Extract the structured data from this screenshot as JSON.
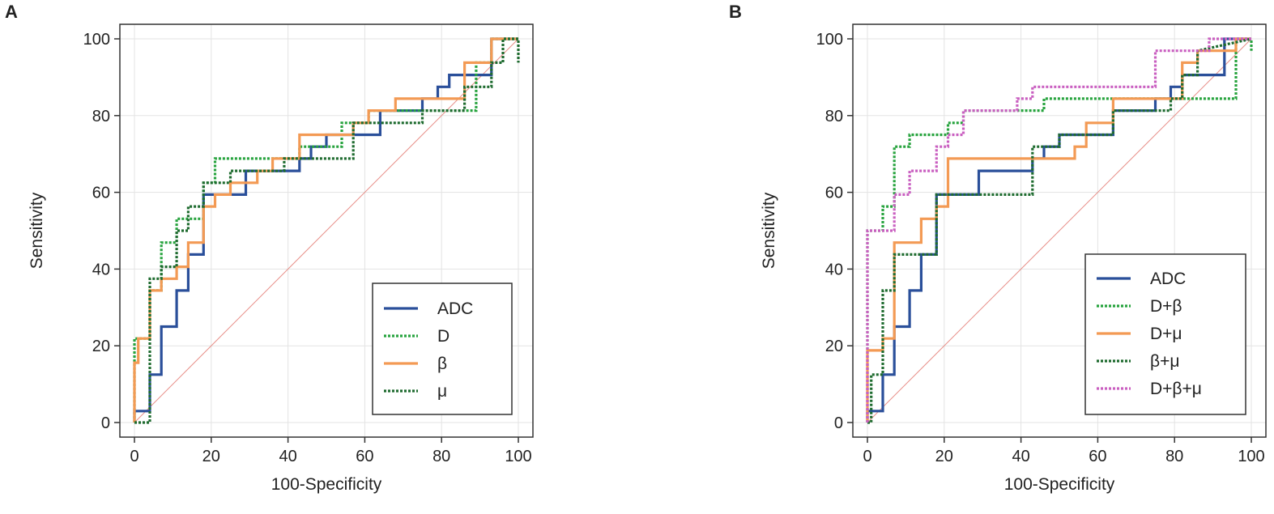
{
  "chart_data": [
    {
      "type": "line",
      "panel": "A",
      "title": "",
      "xlabel": "100-Specificity",
      "ylabel": "Sensitivity",
      "xlim": [
        0,
        100
      ],
      "ylim": [
        0,
        100
      ],
      "xticks": [
        "0",
        "20",
        "40",
        "60",
        "80",
        "100"
      ],
      "yticks": [
        "0",
        "20",
        "40",
        "60",
        "80",
        "100"
      ],
      "grid": true,
      "legend_position": "bottom-right",
      "reference_line": {
        "name": "chance line",
        "color": "#e8908a",
        "x": [
          0,
          100
        ],
        "y": [
          0,
          100
        ]
      },
      "series": [
        {
          "name": "ADC",
          "color": "#2a4f9a",
          "style": "solid",
          "x": [
            0,
            0,
            4,
            4,
            7,
            7,
            11,
            11,
            14,
            14,
            18,
            18,
            29,
            29,
            43,
            43,
            46,
            46,
            50,
            50,
            64,
            64,
            75,
            75,
            79,
            79,
            82,
            82,
            93,
            93,
            100
          ],
          "y": [
            0,
            3,
            3,
            12.5,
            12.5,
            25,
            25,
            34.4,
            34.4,
            43.8,
            43.8,
            59.4,
            59.4,
            65.6,
            65.6,
            68.8,
            68.8,
            71.9,
            71.9,
            75,
            75,
            81.3,
            81.3,
            84.4,
            84.4,
            87.5,
            87.5,
            90.6,
            90.6,
            100,
            100
          ]
        },
        {
          "name": "D",
          "color": "#27a33e",
          "style": "dotted",
          "x": [
            0,
            0,
            4,
            4,
            7,
            7,
            11,
            11,
            18,
            18,
            21,
            21,
            43,
            43,
            54,
            54,
            61,
            61,
            89,
            89,
            93,
            93,
            100,
            100
          ],
          "y": [
            0,
            21.9,
            21.9,
            34.4,
            34.4,
            46.9,
            46.9,
            53.1,
            53.1,
            62.5,
            62.5,
            68.8,
            68.8,
            71.9,
            71.9,
            78.1,
            78.1,
            81.3,
            81.3,
            93.8,
            93.8,
            100,
            100,
            100
          ]
        },
        {
          "name": "β",
          "color": "#f39a54",
          "style": "solid",
          "x": [
            0,
            0,
            1,
            1,
            4,
            4,
            7,
            7,
            11,
            11,
            14,
            14,
            18,
            18,
            21,
            21,
            25,
            25,
            32,
            32,
            36,
            36,
            43,
            43,
            57,
            57,
            61,
            61,
            68,
            68,
            86,
            86,
            93,
            93,
            100
          ],
          "y": [
            0,
            15.6,
            15.6,
            21.9,
            21.9,
            34.4,
            34.4,
            37.5,
            37.5,
            40.6,
            40.6,
            46.9,
            46.9,
            56.3,
            56.3,
            59.4,
            59.4,
            62.5,
            62.5,
            65.6,
            65.6,
            68.8,
            68.8,
            75,
            75,
            78.1,
            78.1,
            81.3,
            81.3,
            84.4,
            84.4,
            93.8,
            93.8,
            100,
            100
          ]
        },
        {
          "name": "μ",
          "color": "#1e6b2f",
          "style": "dotted",
          "x": [
            0,
            4,
            4,
            7,
            7,
            11,
            11,
            14,
            14,
            18,
            18,
            25,
            25,
            39,
            39,
            57,
            57,
            75,
            75,
            86,
            86,
            93,
            93,
            96,
            96,
            100,
            100
          ],
          "y": [
            0,
            0,
            37.5,
            37.5,
            40.6,
            40.6,
            50,
            50,
            56.3,
            56.3,
            62.5,
            62.5,
            65.6,
            65.6,
            68.8,
            68.8,
            78.1,
            78.1,
            81.3,
            81.3,
            87.5,
            87.5,
            93.8,
            93.8,
            100,
            100,
            93.8
          ]
        }
      ]
    },
    {
      "type": "line",
      "panel": "B",
      "title": "",
      "xlabel": "100-Specificity",
      "ylabel": "Sensitivity",
      "xlim": [
        0,
        100
      ],
      "ylim": [
        0,
        100
      ],
      "xticks": [
        "0",
        "20",
        "40",
        "60",
        "80",
        "100"
      ],
      "yticks": [
        "0",
        "20",
        "40",
        "60",
        "80",
        "100"
      ],
      "grid": true,
      "legend_position": "bottom-right",
      "reference_line": {
        "name": "chance line",
        "color": "#e8908a",
        "x": [
          0,
          100
        ],
        "y": [
          0,
          100
        ]
      },
      "series": [
        {
          "name": "ADC",
          "color": "#2a4f9a",
          "style": "solid",
          "x": [
            0,
            0,
            4,
            4,
            7,
            7,
            11,
            11,
            14,
            14,
            18,
            18,
            29,
            29,
            43,
            43,
            46,
            46,
            50,
            50,
            64,
            64,
            75,
            75,
            79,
            79,
            82,
            82,
            93,
            93,
            100
          ],
          "y": [
            0,
            3,
            3,
            12.5,
            12.5,
            25,
            25,
            34.4,
            34.4,
            43.8,
            43.8,
            59.4,
            59.4,
            65.6,
            65.6,
            68.8,
            68.8,
            71.9,
            71.9,
            75,
            75,
            81.3,
            81.3,
            84.4,
            84.4,
            87.5,
            87.5,
            90.6,
            90.6,
            100,
            100
          ]
        },
        {
          "name": "D+β",
          "color": "#27a33e",
          "style": "dotted",
          "x": [
            0,
            0,
            4,
            4,
            7,
            7,
            11,
            11,
            14,
            14,
            21,
            21,
            25,
            25,
            32,
            32,
            46,
            46,
            96,
            96,
            100,
            100
          ],
          "y": [
            0,
            50,
            50,
            56.3,
            56.3,
            71.9,
            71.9,
            75,
            75,
            75,
            75,
            78.1,
            78.1,
            81.3,
            81.3,
            81.3,
            81.3,
            84.4,
            84.4,
            100,
            100,
            96.9
          ]
        },
        {
          "name": "D+μ",
          "color": "#f39a54",
          "style": "solid",
          "x": [
            0,
            0,
            4,
            4,
            7,
            7,
            14,
            14,
            18,
            18,
            21,
            21,
            43,
            43,
            54,
            54,
            57,
            57,
            64,
            64,
            75,
            75,
            82,
            82,
            86,
            86,
            96,
            96,
            100
          ],
          "y": [
            0,
            18.8,
            18.8,
            21.9,
            21.9,
            46.9,
            46.9,
            53.1,
            53.1,
            56.3,
            56.3,
            68.8,
            68.8,
            68.8,
            68.8,
            71.9,
            71.9,
            78.1,
            78.1,
            84.4,
            84.4,
            84.4,
            84.4,
            93.8,
            93.8,
            96.9,
            96.9,
            100,
            100
          ]
        },
        {
          "name": "β+μ",
          "color": "#1e6b2f",
          "style": "dotted",
          "x": [
            0,
            1,
            1,
            4,
            4,
            7,
            7,
            11,
            11,
            18,
            18,
            25,
            25,
            43,
            43,
            50,
            50,
            54,
            54,
            64,
            64,
            79,
            79,
            82,
            82,
            86,
            86,
            100
          ],
          "y": [
            0,
            0,
            12.5,
            12.5,
            34.4,
            34.4,
            43.8,
            43.8,
            43.8,
            43.8,
            59.4,
            59.4,
            59.4,
            59.4,
            71.9,
            71.9,
            75,
            75,
            75,
            75,
            81.3,
            81.3,
            84.4,
            84.4,
            90.6,
            90.6,
            96.9,
            100
          ]
        },
        {
          "name": "D+β+μ",
          "color": "#c95fc0",
          "style": "dotted",
          "x": [
            0,
            0,
            7,
            7,
            11,
            11,
            18,
            18,
            21,
            21,
            25,
            25,
            39,
            39,
            43,
            43,
            75,
            75,
            89,
            89,
            100
          ],
          "y": [
            0,
            50,
            50,
            59.4,
            59.4,
            65.6,
            65.6,
            71.9,
            71.9,
            75,
            75,
            81.3,
            81.3,
            84.4,
            84.4,
            87.5,
            87.5,
            96.9,
            96.9,
            100,
            100
          ]
        }
      ]
    }
  ]
}
